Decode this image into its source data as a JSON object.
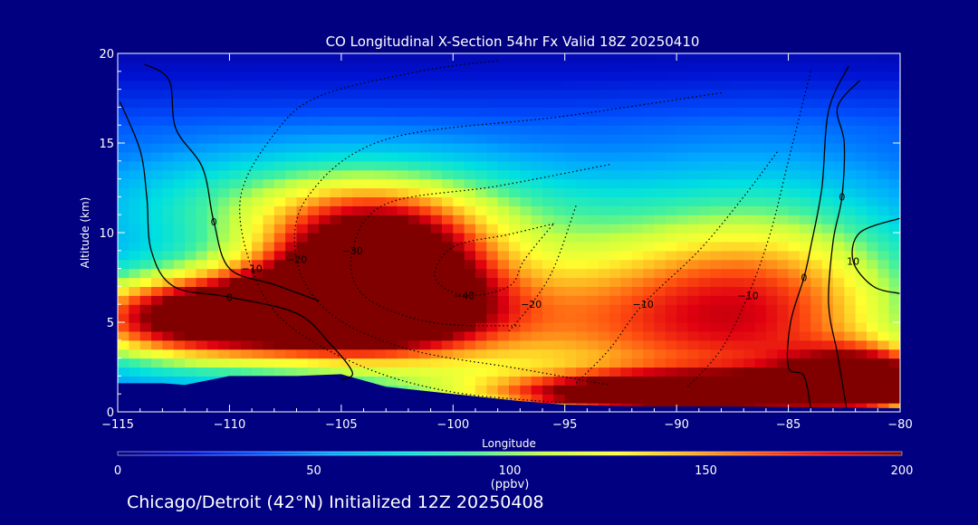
{
  "chart_data": {
    "type": "heatmap",
    "title": "CO Longitudinal X-Section 54hr  Fx Valid 18Z 20250410",
    "xlabel": "Longitude",
    "ylabel": "Altitude (km)",
    "xlim": [
      -115,
      -80
    ],
    "ylim": [
      0,
      20
    ],
    "x_ticks": [
      -115,
      -110,
      -105,
      -100,
      -95,
      -90,
      -85,
      -80
    ],
    "x_tick_labels": [
      "−115",
      "−110",
      "−105",
      "−100",
      "−95",
      "−90",
      "−85",
      "−80"
    ],
    "y_ticks": [
      0,
      5,
      10,
      15,
      20
    ],
    "y_tick_labels": [
      "0",
      "5",
      "10",
      "15",
      "20"
    ],
    "colorbar": {
      "min": 0,
      "max": 200,
      "ticks": [
        "0",
        "50",
        "100",
        "150",
        "200"
      ],
      "unit": "(ppbv)",
      "colors": [
        "#050080",
        "#0010d0",
        "#0050ff",
        "#00a8ff",
        "#00e0e0",
        "#40f0a0",
        "#c8ff40",
        "#ffff30",
        "#ffb020",
        "#ff5010",
        "#e00010",
        "#800000"
      ]
    },
    "co_field": {
      "background": 35,
      "blobs": [
        {
          "lon": -103.5,
          "alt": 8.0,
          "amp": 175,
          "sx": 3.2,
          "sy": 2.4
        },
        {
          "lon": -106.0,
          "alt": 5.6,
          "amp": 150,
          "sx": 4.5,
          "sy": 1.6
        },
        {
          "lon": -112.5,
          "alt": 5.2,
          "amp": 120,
          "sx": 4.0,
          "sy": 1.7
        },
        {
          "lon": -96.0,
          "alt": 5.0,
          "amp": 95,
          "sx": 9.0,
          "sy": 3.5
        },
        {
          "lon": -86.0,
          "alt": 6.0,
          "amp": 95,
          "sx": 5.0,
          "sy": 4.5
        },
        {
          "lon": -105.0,
          "alt": 11.5,
          "amp": 70,
          "sx": 7.0,
          "sy": 2.2
        },
        {
          "lon": -90.0,
          "alt": 1.0,
          "amp": 170,
          "sx": 5.5,
          "sy": 0.8
        },
        {
          "lon": -81.5,
          "alt": 1.8,
          "amp": 160,
          "sx": 2.5,
          "sy": 1.2
        }
      ]
    },
    "terrain": [
      [
        -115,
        1.6
      ],
      [
        -113,
        1.6
      ],
      [
        -112,
        1.5
      ],
      [
        -110,
        2.0
      ],
      [
        -107,
        2.0
      ],
      [
        -105,
        2.1
      ],
      [
        -103,
        1.4
      ],
      [
        -100,
        1.0
      ],
      [
        -97,
        0.6
      ],
      [
        -95,
        0.4
      ],
      [
        -92,
        0.3
      ],
      [
        -88,
        0.3
      ],
      [
        -84,
        0.25
      ],
      [
        -80,
        0.2
      ]
    ],
    "contours": {
      "solid": [
        {
          "label": "0",
          "points": [
            [
              -114.9,
              17.3
            ],
            [
              -114.0,
              14.6
            ],
            [
              -113.7,
              12.0
            ],
            [
              -113.5,
              9.0
            ],
            [
              -112.5,
              7.0
            ],
            [
              -110.0,
              6.4
            ],
            [
              -107.0,
              5.5
            ],
            [
              -105.5,
              3.8
            ],
            [
              -104.5,
              2.2
            ],
            [
              -105.0,
              1.8
            ]
          ]
        },
        {
          "label": "0",
          "points": [
            [
              -113.8,
              19.4
            ],
            [
              -112.7,
              18.5
            ],
            [
              -112.4,
              15.8
            ],
            [
              -111.2,
              13.6
            ],
            [
              -110.7,
              10.6
            ],
            [
              -110.0,
              8.0
            ],
            [
              -108.0,
              7.1
            ],
            [
              -106.0,
              6.2
            ]
          ]
        },
        {
          "label": "0",
          "points": [
            [
              -84.0,
              0.2
            ],
            [
              -84.3,
              2.0
            ],
            [
              -85.0,
              2.5
            ],
            [
              -84.9,
              5.0
            ],
            [
              -84.3,
              7.5
            ],
            [
              -84.0,
              9.2
            ],
            [
              -83.5,
              12.5
            ],
            [
              -83.2,
              16.8
            ],
            [
              -82.3,
              19.3
            ]
          ]
        },
        {
          "label": "0",
          "points": [
            [
              -82.4,
              0.2
            ],
            [
              -82.8,
              3.2
            ],
            [
              -83.2,
              6.0
            ],
            [
              -83.0,
              9.5
            ],
            [
              -82.6,
              12.0
            ],
            [
              -82.5,
              15.0
            ],
            [
              -82.8,
              17.0
            ],
            [
              -81.8,
              18.5
            ]
          ]
        },
        {
          "label": "10",
          "points": [
            [
              -80.0,
              10.8
            ],
            [
              -81.8,
              10.0
            ],
            [
              -82.1,
              8.4
            ],
            [
              -81.2,
              7.0
            ],
            [
              -80.0,
              6.6
            ]
          ]
        }
      ],
      "dotted": [
        {
          "label": "−10",
          "points": [
            [
              -98.0,
              19.6
            ],
            [
              -101.5,
              19.0
            ],
            [
              -106.0,
              17.6
            ],
            [
              -108.0,
              15.5
            ],
            [
              -109.5,
              12.0
            ],
            [
              -109.0,
              8.0
            ],
            [
              -107.5,
              5.0
            ],
            [
              -104.0,
              2.5
            ],
            [
              -100.0,
              1.1
            ],
            [
              -95.0,
              0.5
            ]
          ]
        },
        {
          "label": "−20",
          "points": [
            [
              -88.0,
              17.8
            ],
            [
              -95.0,
              16.5
            ],
            [
              -103.0,
              15.2
            ],
            [
              -106.5,
              12.0
            ],
            [
              -107.0,
              8.5
            ],
            [
              -105.5,
              5.5
            ],
            [
              -102.0,
              3.5
            ],
            [
              -97.0,
              2.4
            ],
            [
              -93.0,
              1.5
            ]
          ]
        },
        {
          "label": "−30",
          "points": [
            [
              -93.0,
              13.8
            ],
            [
              -98.0,
              12.6
            ],
            [
              -103.0,
              11.6
            ],
            [
              -104.5,
              9.0
            ],
            [
              -104.0,
              6.5
            ],
            [
              -101.0,
              5.0
            ],
            [
              -97.0,
              4.8
            ]
          ]
        },
        {
          "label": "−40",
          "points": [
            [
              -95.5,
              10.5
            ],
            [
              -97.5,
              9.9
            ],
            [
              -100.0,
              9.2
            ],
            [
              -100.8,
              7.5
            ],
            [
              -99.5,
              6.5
            ],
            [
              -97.5,
              7.0
            ],
            [
              -96.8,
              8.5
            ],
            [
              -95.5,
              10.5
            ]
          ]
        },
        {
          "label": "−20",
          "points": [
            [
              -94.5,
              11.5
            ],
            [
              -95.5,
              8.0
            ],
            [
              -96.5,
              6.0
            ],
            [
              -97.5,
              4.5
            ]
          ]
        },
        {
          "label": "−10",
          "points": [
            [
              -85.5,
              14.5
            ],
            [
              -87.0,
              12.0
            ],
            [
              -89.0,
              9.0
            ],
            [
              -91.5,
              6.0
            ],
            [
              -93.0,
              3.5
            ],
            [
              -94.5,
              1.6
            ]
          ]
        },
        {
          "label": "−10",
          "points": [
            [
              -84.0,
              19.0
            ],
            [
              -85.0,
              14.0
            ],
            [
              -85.8,
              10.0
            ],
            [
              -86.8,
              6.5
            ],
            [
              -88.0,
              3.5
            ],
            [
              -89.5,
              1.4
            ]
          ]
        }
      ]
    }
  },
  "footer": {
    "location_text": "Chicago/Detroit (42°N) Initialized 12Z 20250408"
  }
}
